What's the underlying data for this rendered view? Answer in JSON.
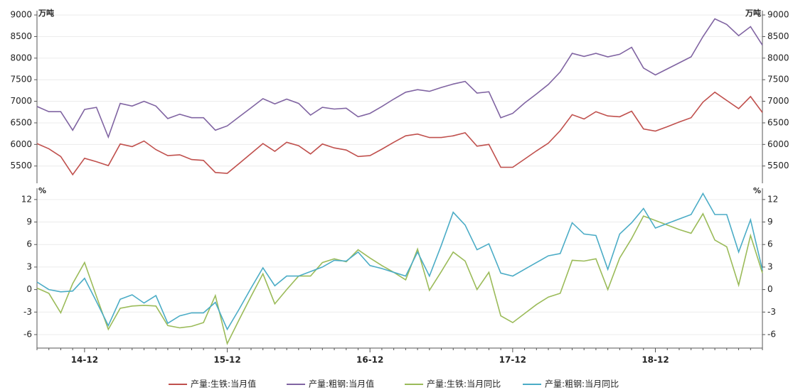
{
  "chart_data": [
    {
      "type": "line",
      "y_unit": "万吨",
      "ylim": [
        5100,
        9100
      ],
      "yticks": [
        5500,
        6000,
        6500,
        7000,
        7500,
        8000,
        8500,
        9000
      ],
      "grid": true,
      "series": [
        {
          "name": "产量:生铁:当月值",
          "color": "#c0504d",
          "values": [
            6020,
            5900,
            5720,
            5300,
            5680,
            5600,
            5510,
            6010,
            5950,
            6080,
            5880,
            5740,
            5760,
            5650,
            5630,
            5350,
            5330,
            5560,
            5790,
            6020,
            5840,
            6050,
            5970,
            5780,
            6010,
            5920,
            5870,
            5720,
            5740,
            5890,
            6050,
            6200,
            6240,
            6160,
            6160,
            6200,
            6270,
            5960,
            6000,
            5470,
            5470,
            5660,
            5850,
            6030,
            6320,
            6690,
            6590,
            6760,
            6660,
            6640,
            6770,
            6360,
            6310,
            6410,
            6520,
            6620,
            6980,
            7210,
            7020,
            6830,
            7110,
            6740
          ]
        },
        {
          "name": "产量:粗钢:当月值",
          "color": "#8064a2",
          "values": [
            6880,
            6760,
            6760,
            6330,
            6810,
            6860,
            6170,
            6950,
            6890,
            7000,
            6890,
            6600,
            6700,
            6620,
            6620,
            6330,
            6430,
            6640,
            6850,
            7060,
            6940,
            7050,
            6950,
            6680,
            6860,
            6820,
            6840,
            6640,
            6720,
            6880,
            7050,
            7210,
            7270,
            7230,
            7320,
            7400,
            7460,
            7190,
            7220,
            6620,
            6720,
            6960,
            7170,
            7390,
            7680,
            8110,
            8040,
            8110,
            8030,
            8090,
            8250,
            7770,
            7610,
            7750,
            7890,
            8030,
            8500,
            8910,
            8780,
            8520,
            8730,
            8300
          ]
        }
      ]
    },
    {
      "type": "line",
      "y_unit": "%",
      "ylim": [
        -7.8,
        13.5
      ],
      "yticks": [
        -6,
        -3,
        0,
        3,
        6,
        9,
        12
      ],
      "grid": true,
      "categories": [
        null,
        null,
        null,
        null,
        "14-12",
        null,
        null,
        null,
        null,
        null,
        null,
        null,
        null,
        null,
        null,
        null,
        "15-12",
        null,
        null,
        null,
        null,
        null,
        null,
        null,
        null,
        null,
        null,
        null,
        "16-12",
        null,
        null,
        null,
        null,
        null,
        null,
        null,
        null,
        null,
        null,
        null,
        "17-12",
        null,
        null,
        null,
        null,
        null,
        null,
        null,
        null,
        null,
        null,
        null,
        "18-12",
        null,
        null,
        null,
        null,
        null,
        null,
        null,
        null,
        null
      ],
      "series": [
        {
          "name": "产量:生铁:当月同比",
          "color": "#9bbb59",
          "values": [
            0.2,
            -0.5,
            -3.1,
            0.8,
            3.6,
            -0.9,
            -5.3,
            -2.5,
            -2.2,
            -2.1,
            -2.2,
            -4.8,
            -5.1,
            -4.9,
            -4.4,
            -0.8,
            -7.2,
            -4.0,
            -0.9,
            2.1,
            -1.9,
            0.0,
            1.8,
            1.8,
            3.6,
            4.1,
            3.7,
            5.3,
            4.2,
            3.2,
            2.3,
            1.3,
            5.4,
            -0.1,
            2.4,
            5.0,
            3.8,
            0.0,
            2.3,
            -3.5,
            -4.4,
            -3.2,
            -2.0,
            -1.0,
            -0.5,
            3.9,
            3.8,
            4.1,
            0.0,
            4.2,
            6.8,
            9.8,
            9.2,
            8.6,
            8.0,
            7.5,
            10.1,
            6.6,
            5.7,
            0.6,
            7.2,
            2.2
          ]
        },
        {
          "name": "产量:粗钢:当月同比",
          "color": "#4bacc6",
          "values": [
            1.0,
            0.0,
            -0.3,
            -0.2,
            1.5,
            -1.6,
            -4.8,
            -1.3,
            -0.7,
            -1.8,
            -0.8,
            -4.5,
            -3.5,
            -3.1,
            -3.1,
            -1.7,
            -5.3,
            -2.6,
            0.2,
            2.9,
            0.5,
            1.8,
            1.8,
            2.4,
            3.0,
            3.9,
            3.8,
            5.0,
            3.2,
            2.8,
            2.3,
            1.8,
            5.0,
            1.8,
            5.9,
            10.3,
            8.6,
            5.3,
            6.1,
            2.2,
            1.8,
            2.7,
            3.6,
            4.5,
            4.8,
            8.9,
            7.4,
            7.2,
            2.7,
            7.4,
            8.9,
            10.8,
            8.2,
            8.8,
            9.4,
            10.0,
            12.8,
            10.0,
            10.0,
            5.0,
            9.3,
            2.6
          ]
        }
      ]
    }
  ]
}
